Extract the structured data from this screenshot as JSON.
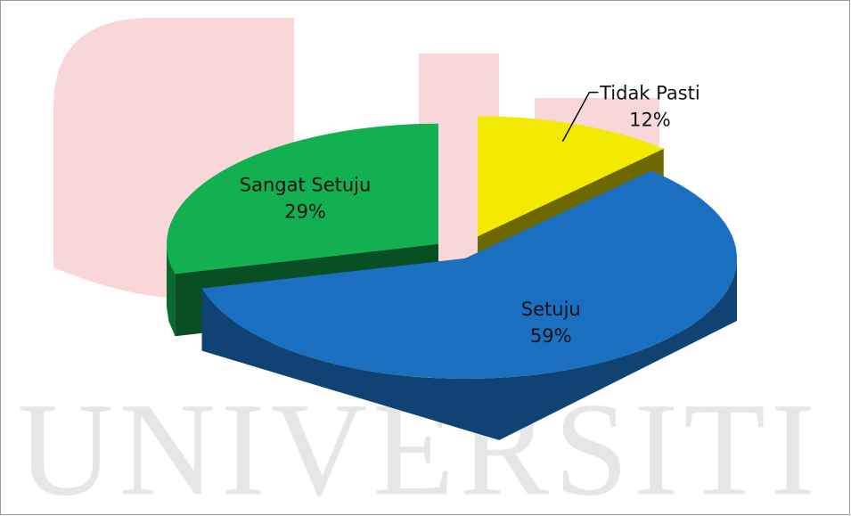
{
  "chart_data": {
    "type": "pie3d",
    "categories": [
      "Tidak Pasti",
      "Setuju",
      "Sangat Setuju"
    ],
    "values": [
      12,
      59,
      29
    ],
    "value_labels": [
      "12%",
      "59%",
      "29%"
    ],
    "colors": [
      "#f2ea00",
      "#1a6fc0",
      "#12b050"
    ],
    "watermark": "UNIVERSITI"
  }
}
